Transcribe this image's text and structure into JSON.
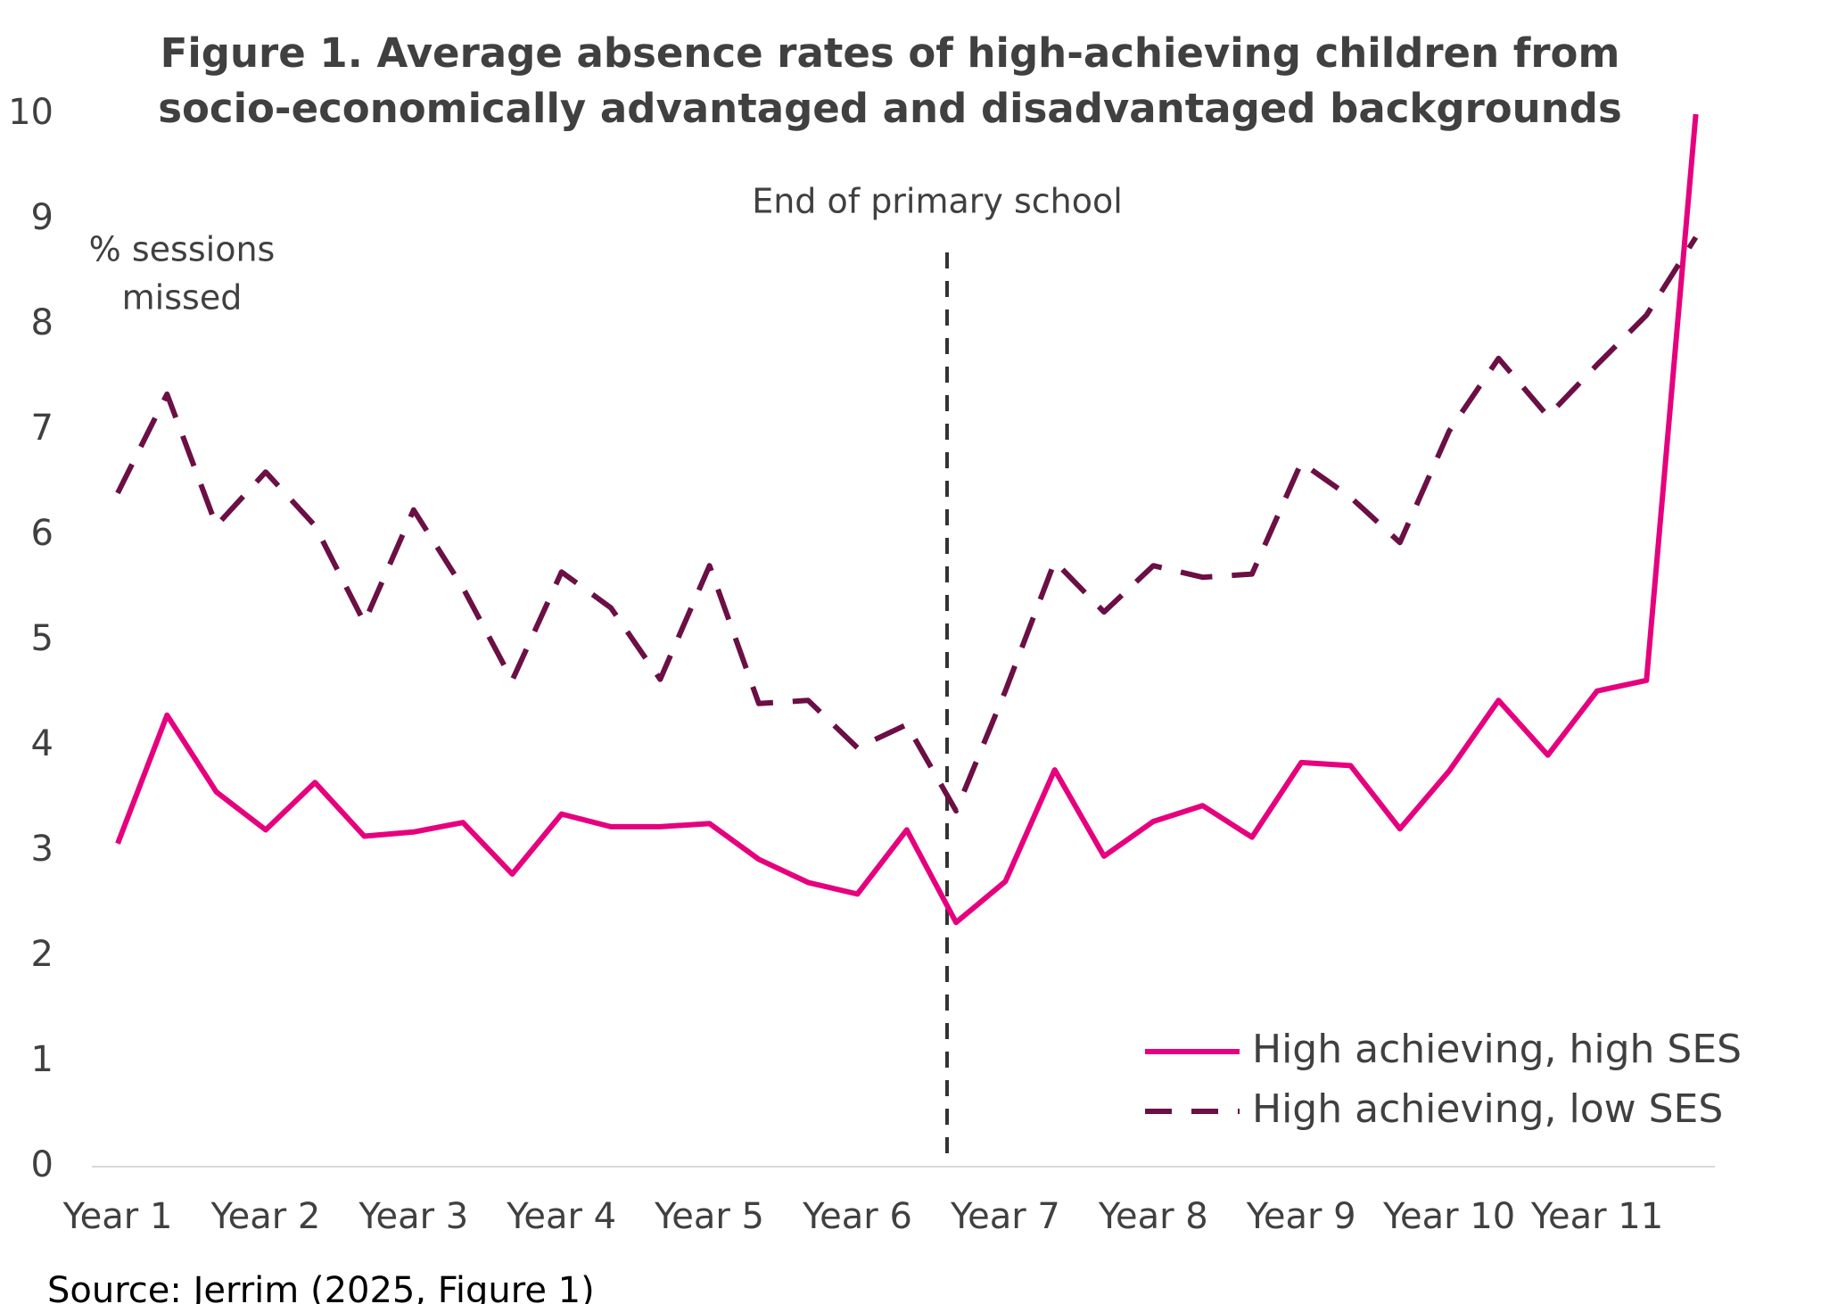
{
  "chart_data": {
    "type": "line",
    "title": [
      "Figure 1. Average absence rates of high-achieving children from",
      "socio-economically advantaged and disadvantaged backgrounds"
    ],
    "y_label": [
      "% sessions",
      "missed"
    ],
    "annotation": "End of primary school",
    "source": "Source: Jerrim (2025, Figure 1)",
    "categories": [
      "Year 1",
      null,
      null,
      "Year 2",
      null,
      null,
      "Year 3",
      null,
      null,
      "Year 4",
      null,
      null,
      "Year 5",
      null,
      null,
      "Year 6",
      null,
      null,
      "Year 7",
      null,
      null,
      "Year 8",
      null,
      null,
      "Year 9",
      null,
      null,
      "Year 10",
      null,
      null,
      "Year 11",
      null,
      null
    ],
    "series": [
      {
        "name": "High achieving, high SES",
        "color": "#e6007e",
        "dash": false,
        "values": [
          3.07,
          4.29,
          3.56,
          3.2,
          3.65,
          3.14,
          3.18,
          3.27,
          2.78,
          3.35,
          3.23,
          3.23,
          3.26,
          2.92,
          2.7,
          2.59,
          3.2,
          2.32,
          2.71,
          3.77,
          2.95,
          3.28,
          3.43,
          3.13,
          3.84,
          3.81,
          3.21,
          3.76,
          4.43,
          3.91,
          4.52,
          4.62,
          10
        ]
      },
      {
        "name": "High achieving, low SES",
        "color": "#6b0f45",
        "dash": true,
        "values": [
          6.4,
          7.34,
          6.09,
          6.6,
          6.09,
          5.17,
          6.24,
          5.5,
          4.62,
          5.65,
          5.31,
          4.63,
          5.71,
          4.4,
          4.43,
          3.98,
          4.2,
          3.38,
          4.52,
          5.75,
          5.27,
          5.71,
          5.6,
          5.63,
          6.69,
          6.36,
          5.93,
          6.99,
          7.68,
          7.13,
          7.62,
          8.09,
          8.83
        ]
      }
    ],
    "ylim": [
      0,
      10
    ],
    "yticks": [
      0,
      1,
      2,
      3,
      4,
      5,
      6,
      7,
      8,
      9,
      10
    ],
    "grid": false
  }
}
